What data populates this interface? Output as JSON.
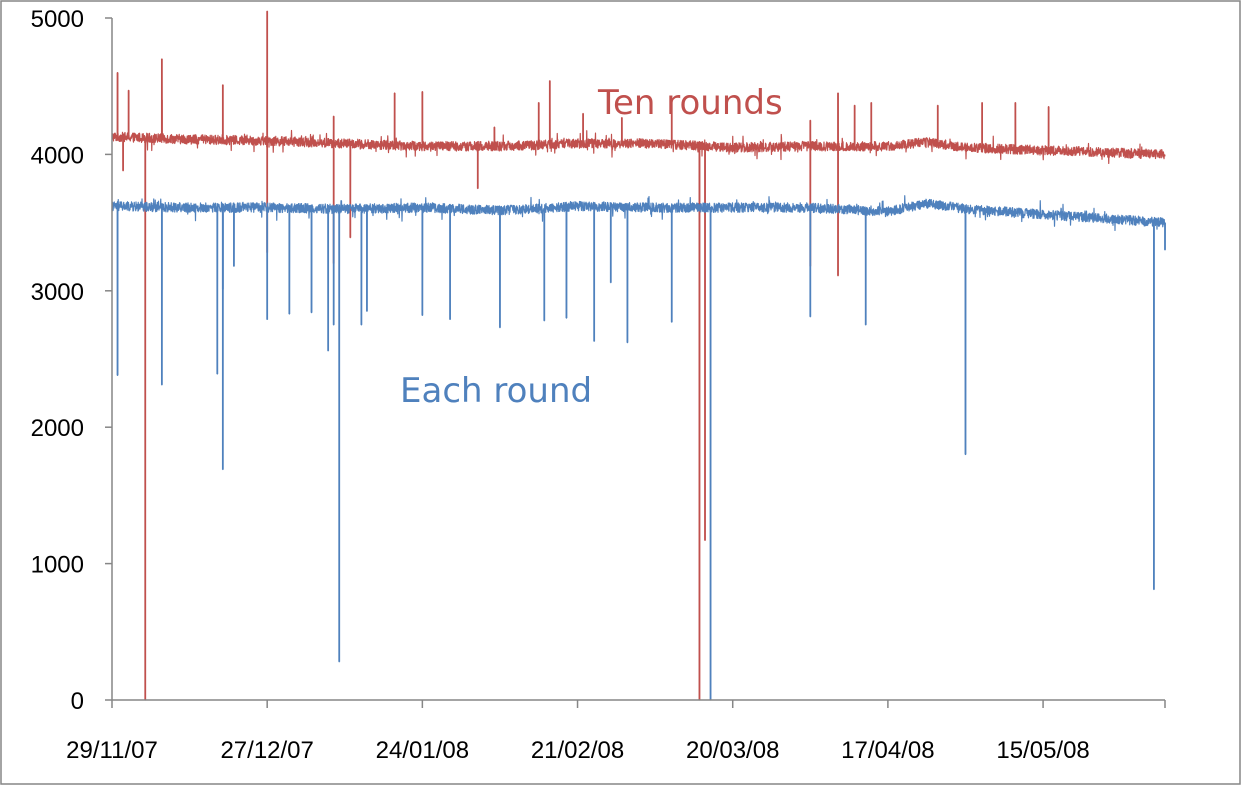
{
  "chart_data": {
    "type": "line",
    "title": "",
    "xlabel": "",
    "ylabel": "",
    "ylim": [
      0,
      5000
    ],
    "xlim": [
      "29/11/07",
      "06/06/08"
    ],
    "grid": false,
    "legend": "none",
    "y_ticks": [
      0,
      1000,
      2000,
      3000,
      4000,
      5000
    ],
    "x_tick_labels": [
      "29/11/07",
      "27/12/07",
      "24/01/08",
      "21/02/08",
      "20/03/08",
      "17/04/08",
      "15/05/08"
    ],
    "annotations": [
      {
        "text": "Ten rounds",
        "series": "Ten rounds"
      },
      {
        "text": "Each round",
        "series": "Each round"
      }
    ],
    "series": [
      {
        "name": "Ten rounds",
        "color": "#c0504d",
        "baseline": [
          {
            "x": "29/11/07",
            "y": 4130
          },
          {
            "x": "13/12/07",
            "y": 4110
          },
          {
            "x": "27/12/07",
            "y": 4100
          },
          {
            "x": "10/01/08",
            "y": 4080
          },
          {
            "x": "24/01/08",
            "y": 4060
          },
          {
            "x": "07/02/08",
            "y": 4060
          },
          {
            "x": "21/02/08",
            "y": 4080
          },
          {
            "x": "06/03/08",
            "y": 4080
          },
          {
            "x": "20/03/08",
            "y": 4050
          },
          {
            "x": "03/04/08",
            "y": 4060
          },
          {
            "x": "17/04/08",
            "y": 4060
          },
          {
            "x": "24/04/08",
            "y": 4090
          },
          {
            "x": "01/05/08",
            "y": 4050
          },
          {
            "x": "15/05/08",
            "y": 4030
          },
          {
            "x": "06/06/08",
            "y": 4000
          }
        ],
        "spikes": [
          {
            "x": "30/11/07",
            "y": 4600
          },
          {
            "x": "01/12/07",
            "y": 3880
          },
          {
            "x": "02/12/07",
            "y": 4470
          },
          {
            "x": "05/12/07",
            "y": 0
          },
          {
            "x": "08/12/07",
            "y": 4700
          },
          {
            "x": "08/12/07",
            "y": 4400
          },
          {
            "x": "19/12/07",
            "y": 4510
          },
          {
            "x": "27/12/07",
            "y": 5050
          },
          {
            "x": "27/12/07",
            "y": 3280
          },
          {
            "x": "08/01/08",
            "y": 4280
          },
          {
            "x": "08/01/08",
            "y": 3200
          },
          {
            "x": "11/01/08",
            "y": 3390
          },
          {
            "x": "19/01/08",
            "y": 4450
          },
          {
            "x": "24/01/08",
            "y": 4460
          },
          {
            "x": "03/02/08",
            "y": 3750
          },
          {
            "x": "06/02/08",
            "y": 4200
          },
          {
            "x": "14/02/08",
            "y": 4380
          },
          {
            "x": "16/02/08",
            "y": 4540
          },
          {
            "x": "22/02/08",
            "y": 4300
          },
          {
            "x": "29/02/08",
            "y": 4270
          },
          {
            "x": "09/03/08",
            "y": 4400
          },
          {
            "x": "14/03/08",
            "y": 0
          },
          {
            "x": "15/03/08",
            "y": 1170
          },
          {
            "x": "03/04/08",
            "y": 4250
          },
          {
            "x": "03/04/08",
            "y": 3180
          },
          {
            "x": "08/04/08",
            "y": 4450
          },
          {
            "x": "08/04/08",
            "y": 3110
          },
          {
            "x": "11/04/08",
            "y": 4360
          },
          {
            "x": "14/04/08",
            "y": 4380
          },
          {
            "x": "26/04/08",
            "y": 4360
          },
          {
            "x": "04/05/08",
            "y": 4380
          },
          {
            "x": "10/05/08",
            "y": 4380
          },
          {
            "x": "16/05/08",
            "y": 4350
          }
        ]
      },
      {
        "name": "Each round",
        "color": "#4f81bd",
        "baseline": [
          {
            "x": "29/11/07",
            "y": 3620
          },
          {
            "x": "13/12/07",
            "y": 3610
          },
          {
            "x": "27/12/07",
            "y": 3610
          },
          {
            "x": "10/01/08",
            "y": 3600
          },
          {
            "x": "24/01/08",
            "y": 3610
          },
          {
            "x": "07/02/08",
            "y": 3590
          },
          {
            "x": "21/02/08",
            "y": 3620
          },
          {
            "x": "06/03/08",
            "y": 3610
          },
          {
            "x": "20/03/08",
            "y": 3610
          },
          {
            "x": "03/04/08",
            "y": 3610
          },
          {
            "x": "17/04/08",
            "y": 3580
          },
          {
            "x": "24/04/08",
            "y": 3640
          },
          {
            "x": "01/05/08",
            "y": 3600
          },
          {
            "x": "15/05/08",
            "y": 3560
          },
          {
            "x": "06/06/08",
            "y": 3500
          }
        ],
        "spikes": [
          {
            "x": "30/11/07",
            "y": 2380
          },
          {
            "x": "08/12/07",
            "y": 2310
          },
          {
            "x": "18/12/07",
            "y": 2390
          },
          {
            "x": "19/12/07",
            "y": 3010
          },
          {
            "x": "19/12/07",
            "y": 1690
          },
          {
            "x": "21/12/07",
            "y": 3180
          },
          {
            "x": "27/12/07",
            "y": 2790
          },
          {
            "x": "31/12/07",
            "y": 2830
          },
          {
            "x": "04/01/08",
            "y": 2840
          },
          {
            "x": "07/01/08",
            "y": 2560
          },
          {
            "x": "08/01/08",
            "y": 2750
          },
          {
            "x": "09/01/08",
            "y": 280
          },
          {
            "x": "13/01/08",
            "y": 2750
          },
          {
            "x": "14/01/08",
            "y": 2850
          },
          {
            "x": "24/01/08",
            "y": 2820
          },
          {
            "x": "29/01/08",
            "y": 2790
          },
          {
            "x": "07/02/08",
            "y": 2730
          },
          {
            "x": "15/02/08",
            "y": 2780
          },
          {
            "x": "19/02/08",
            "y": 2800
          },
          {
            "x": "24/02/08",
            "y": 2630
          },
          {
            "x": "27/02/08",
            "y": 3060
          },
          {
            "x": "01/03/08",
            "y": 2620
          },
          {
            "x": "09/03/08",
            "y": 2770
          },
          {
            "x": "16/03/08",
            "y": 0
          },
          {
            "x": "03/04/08",
            "y": 2810
          },
          {
            "x": "13/04/08",
            "y": 2750
          },
          {
            "x": "01/05/08",
            "y": 1800
          },
          {
            "x": "04/06/08",
            "y": 810
          },
          {
            "x": "06/06/08",
            "y": 3300
          }
        ]
      }
    ]
  }
}
